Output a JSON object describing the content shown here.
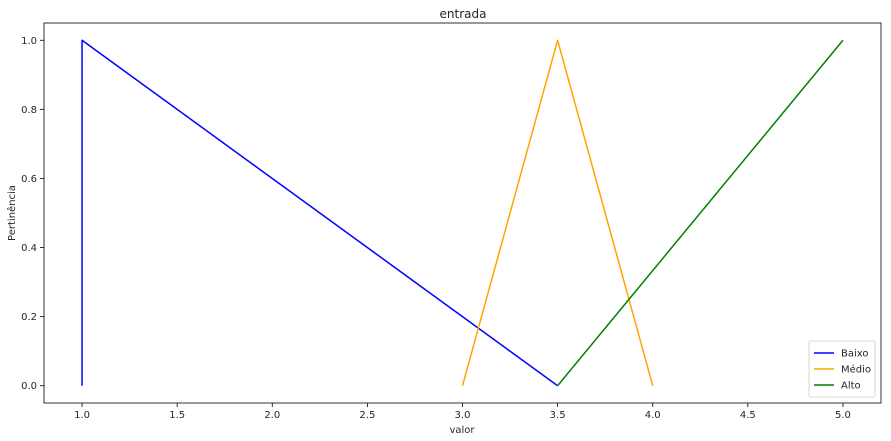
{
  "chart_data": {
    "type": "line",
    "title": "entrada",
    "xlabel": "valor",
    "ylabel": "Pertinência",
    "xlim": [
      0.8,
      5.2
    ],
    "ylim": [
      -0.05,
      1.05
    ],
    "xticks": [
      1.0,
      1.5,
      2.0,
      2.5,
      3.0,
      3.5,
      4.0,
      4.5,
      5.0
    ],
    "xtick_labels": [
      "1.0",
      "1.5",
      "2.0",
      "2.5",
      "3.0",
      "3.5",
      "4.0",
      "4.5",
      "5.0"
    ],
    "yticks": [
      0.0,
      0.2,
      0.4,
      0.6,
      0.8,
      1.0
    ],
    "ytick_labels": [
      "0.0",
      "0.2",
      "0.4",
      "0.6",
      "0.8",
      "1.0"
    ],
    "grid": false,
    "legend_position": "lower-right",
    "series": [
      {
        "name": "Baixo",
        "color": "#0000ff",
        "x": [
          1.0,
          1.0,
          3.5
        ],
        "y": [
          0.0,
          1.0,
          0.0
        ]
      },
      {
        "name": "Médio",
        "color": "#ffa500",
        "x": [
          3.0,
          3.5,
          4.0
        ],
        "y": [
          0.0,
          1.0,
          0.0
        ]
      },
      {
        "name": "Alto",
        "color": "#008000",
        "x": [
          3.5,
          5.0
        ],
        "y": [
          0.0,
          1.0
        ]
      }
    ]
  }
}
